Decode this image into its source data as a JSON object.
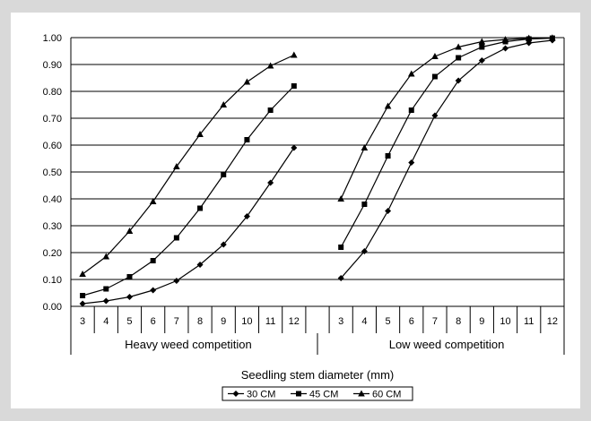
{
  "chart_data": {
    "type": "line",
    "xlabel": "Seedling stem diameter (mm)",
    "ylabel": "",
    "ylim": [
      0,
      1
    ],
    "yticks": [
      "0.00",
      "0.10",
      "0.20",
      "0.30",
      "0.40",
      "0.50",
      "0.60",
      "0.70",
      "0.80",
      "0.90",
      "1.00"
    ],
    "grid": "horizontal",
    "legend_placement": "bottom",
    "groups": [
      {
        "label": "Heavy weed competition",
        "categories": [
          "3",
          "4",
          "5",
          "6",
          "7",
          "8",
          "9",
          "10",
          "11",
          "12"
        ],
        "series": [
          {
            "name": "30 CM",
            "marker": "diamond",
            "values": [
              0.01,
              0.02,
              0.035,
              0.06,
              0.095,
              0.155,
              0.23,
              0.335,
              0.46,
              0.59
            ]
          },
          {
            "name": "45 CM",
            "marker": "square",
            "values": [
              0.04,
              0.065,
              0.11,
              0.17,
              0.255,
              0.365,
              0.49,
              0.62,
              0.73,
              0.82
            ]
          },
          {
            "name": "60 CM",
            "marker": "triangle",
            "values": [
              0.12,
              0.185,
              0.28,
              0.39,
              0.52,
              0.64,
              0.75,
              0.835,
              0.895,
              0.935
            ]
          }
        ]
      },
      {
        "label": "Low weed competition",
        "categories": [
          "3",
          "4",
          "5",
          "6",
          "7",
          "8",
          "9",
          "10",
          "11",
          "12"
        ],
        "series": [
          {
            "name": "30 CM",
            "marker": "diamond",
            "values": [
              0.105,
              0.205,
              0.355,
              0.535,
              0.71,
              0.84,
              0.915,
              0.96,
              0.98,
              0.99
            ]
          },
          {
            "name": "45 CM",
            "marker": "square",
            "values": [
              0.22,
              0.38,
              0.56,
              0.73,
              0.855,
              0.925,
              0.965,
              0.985,
              0.995,
              0.998
            ]
          },
          {
            "name": "60 CM",
            "marker": "triangle",
            "values": [
              0.4,
              0.59,
              0.745,
              0.865,
              0.93,
              0.965,
              0.985,
              0.993,
              0.998,
              0.999
            ]
          }
        ]
      }
    ],
    "legend": [
      "30 CM",
      "45 CM",
      "60 CM"
    ]
  },
  "colors": {
    "line": "#000000",
    "grid": "#000000",
    "background": "#ffffff",
    "page": "#d9d9d9"
  }
}
